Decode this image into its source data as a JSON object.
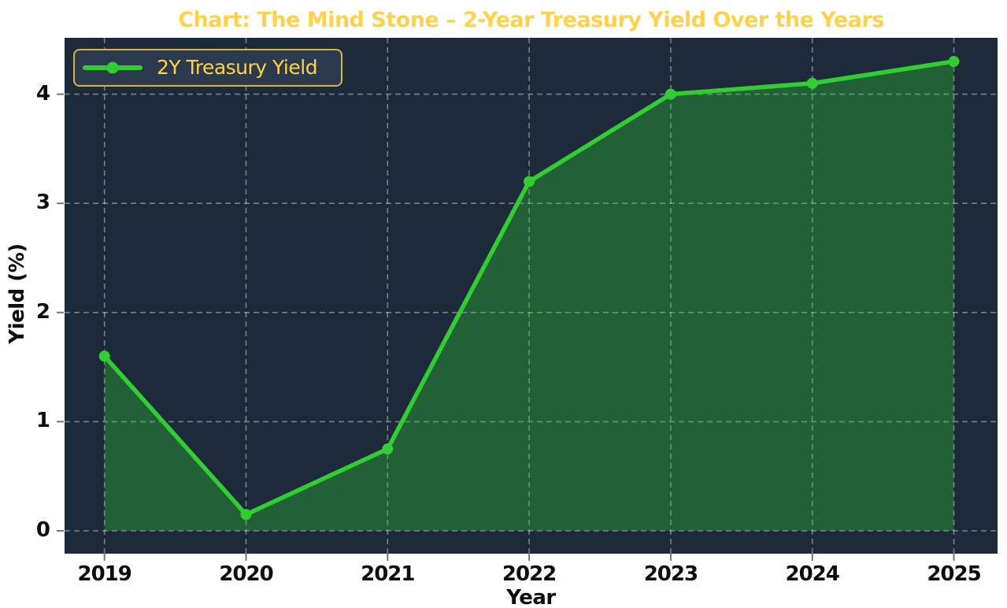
{
  "title": "Chart: The Mind Stone – 2-Year Treasury Yield Over the Years",
  "legend": {
    "label": "2Y Treasury Yield"
  },
  "axes": {
    "xlabel": "Year",
    "ylabel": "Yield (%)"
  },
  "colors": {
    "figure_bg": "#FFFFFF",
    "plot_bg": "#1C2A3A",
    "line": "#32CD32",
    "fill_opacity": 0.33,
    "grid": "rgba(255,255,255,0.40)",
    "tick": "#6B7785",
    "title": "#FFD24A",
    "legend_border": "#D5B445",
    "legend_bg": "#2B3A4C",
    "axis_text": "#0D0D0D"
  },
  "chart_data": {
    "type": "line",
    "title": "Chart: The Mind Stone – 2-Year Treasury Yield Over the Years",
    "xlabel": "Year",
    "ylabel": "Yield (%)",
    "categories": [
      "2019",
      "2020",
      "2021",
      "2022",
      "2023",
      "2024",
      "2025"
    ],
    "series": [
      {
        "name": "2Y Treasury Yield",
        "values": [
          1.6,
          0.15,
          0.75,
          3.2,
          4.0,
          4.1,
          4.3
        ]
      }
    ],
    "yticks": [
      0,
      1,
      2,
      3,
      4
    ],
    "ylim": [
      -0.21,
      4.5
    ],
    "grid": true,
    "grid_style": "dashed",
    "legend_position": "upper left",
    "area_fill": true,
    "markers": "circle"
  }
}
